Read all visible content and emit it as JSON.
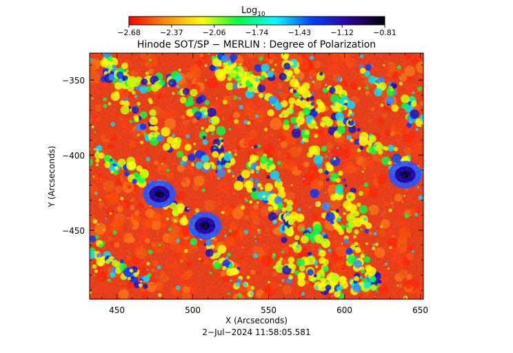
{
  "colorbar": {
    "label": "Log",
    "label_sub": "10",
    "ticks": [
      "−2.68",
      "−2.37",
      "−2.06",
      "−1.74",
      "−1.43",
      "−1.12",
      "−0.81"
    ],
    "range": [
      -2.68,
      -0.81
    ],
    "colors": [
      "#ff0000",
      "#ff8c00",
      "#ffff00",
      "#00ff40",
      "#00ffff",
      "#0040ff",
      "#3000a0",
      "#000000"
    ]
  },
  "chart_data": {
    "type": "heatmap",
    "title": "Hinode SOT/SP − MERLIN : Degree of Polarization",
    "xlabel": "X (Arcseconds)",
    "ylabel": "Y (Arcseconds)",
    "xlim": [
      432,
      652
    ],
    "ylim": [
      -496,
      -332
    ],
    "xticks": [
      450,
      500,
      550,
      600,
      650
    ],
    "yticks": [
      -350,
      -400,
      -450
    ],
    "xtick_labels": [
      "450",
      "500",
      "550",
      "600",
      "650"
    ],
    "ytick_labels": [
      "−350",
      "−400",
      "−450"
    ],
    "value_scale": "log10",
    "features": [
      {
        "label": "dark spot",
        "x": 478,
        "y": -426,
        "value": -0.85
      },
      {
        "label": "dark spot",
        "x": 508,
        "y": -447,
        "value": -0.85
      },
      {
        "label": "dark spot",
        "x": 640,
        "y": -413,
        "value": -0.9
      }
    ]
  },
  "timestamp": "2−Jul−2024  11:58:05.581"
}
